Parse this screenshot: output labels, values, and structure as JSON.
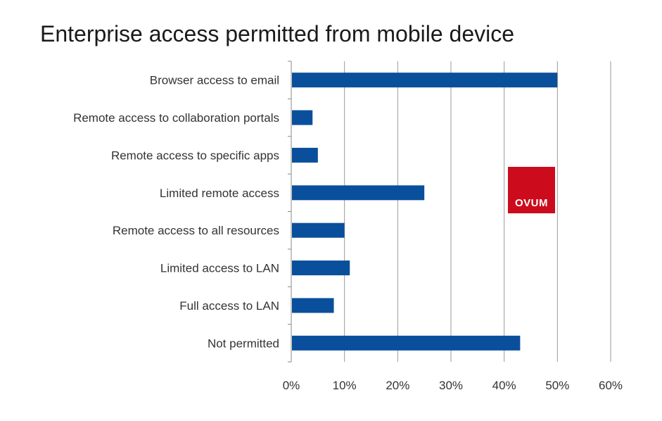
{
  "chart_data": {
    "type": "bar",
    "orientation": "horizontal",
    "title": "Enterprise access permitted from mobile device",
    "categories": [
      "Browser access to email",
      "Remote access to collaboration portals",
      "Remote access to specific apps",
      "Limited remote access",
      "Remote access to all resources",
      "Limited access to LAN",
      "Full access to LAN",
      "Not permitted"
    ],
    "values": [
      50,
      4,
      5,
      25,
      10,
      11,
      8,
      43
    ],
    "xlim": [
      0,
      60
    ],
    "xticks": [
      "0%",
      "10%",
      "20%",
      "30%",
      "40%",
      "50%",
      "60%"
    ],
    "xlabel": "",
    "ylabel": "",
    "grid": "vertical",
    "bar_color": "#0a4f9c",
    "grid_color": "#9a9a9a"
  },
  "logo": {
    "text": "OVUM",
    "color": "#cc0c1c"
  }
}
